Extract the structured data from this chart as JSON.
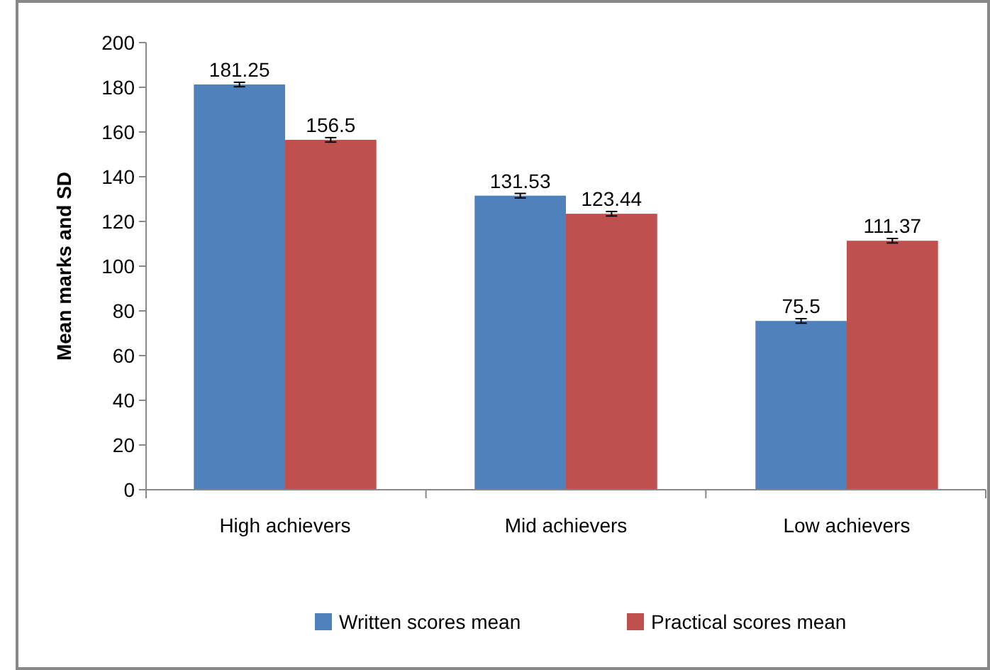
{
  "chart_data": {
    "type": "bar",
    "ylabel": "Mean marks and SD",
    "categories": [
      "High achievers",
      "Mid achievers",
      "Low achievers"
    ],
    "series": [
      {
        "name": "Written scores mean",
        "color": "#4f81bd",
        "values": [
          181.25,
          131.53,
          75.5
        ],
        "errors": [
          1,
          1,
          1
        ]
      },
      {
        "name": "Practical scores mean",
        "color": "#c0504d",
        "values": [
          156.5,
          123.44,
          111.37
        ],
        "errors": [
          1,
          1,
          1
        ]
      }
    ],
    "ylim": [
      0,
      200
    ],
    "yticks": [
      0,
      20,
      40,
      60,
      80,
      100,
      120,
      140,
      160,
      180,
      200
    ],
    "data_labels": true,
    "legend": "bottom",
    "grid": false
  }
}
